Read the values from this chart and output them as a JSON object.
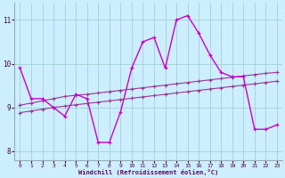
{
  "x": [
    0,
    1,
    2,
    3,
    4,
    5,
    6,
    7,
    8,
    9,
    10,
    11,
    12,
    13,
    14,
    15,
    16,
    17,
    18,
    19,
    20,
    21,
    22,
    23
  ],
  "y_main": [
    9.9,
    9.2,
    9.2,
    9.0,
    8.8,
    9.3,
    9.2,
    8.2,
    8.2,
    8.9,
    9.9,
    10.5,
    10.6,
    9.9,
    11.0,
    11.1,
    10.7,
    10.2,
    9.8,
    9.7,
    9.7,
    8.5,
    8.5,
    8.6
  ],
  "y_trend1": [
    9.05,
    9.1,
    9.15,
    9.2,
    9.25,
    9.28,
    9.3,
    9.33,
    9.36,
    9.39,
    9.42,
    9.45,
    9.48,
    9.51,
    9.54,
    9.57,
    9.6,
    9.63,
    9.66,
    9.69,
    9.72,
    9.75,
    9.78,
    9.8
  ],
  "y_trend2": [
    8.88,
    8.92,
    8.96,
    9.0,
    9.03,
    9.06,
    9.09,
    9.12,
    9.15,
    9.18,
    9.21,
    9.24,
    9.27,
    9.3,
    9.33,
    9.36,
    9.39,
    9.42,
    9.45,
    9.48,
    9.51,
    9.54,
    9.57,
    9.6
  ],
  "color_main": "#cc00cc",
  "color_trend": "#993399",
  "bg_color": "#cceeff",
  "grid_color": "#99cccc",
  "xlabel": "Windchill (Refroidissement éolien,°C)",
  "ylim": [
    7.8,
    11.4
  ],
  "xlim": [
    -0.5,
    23.5
  ],
  "yticks": [
    8,
    9,
    10,
    11
  ],
  "xticks": [
    0,
    1,
    2,
    3,
    4,
    5,
    6,
    7,
    8,
    9,
    10,
    11,
    12,
    13,
    14,
    15,
    16,
    17,
    18,
    19,
    20,
    21,
    22,
    23
  ]
}
